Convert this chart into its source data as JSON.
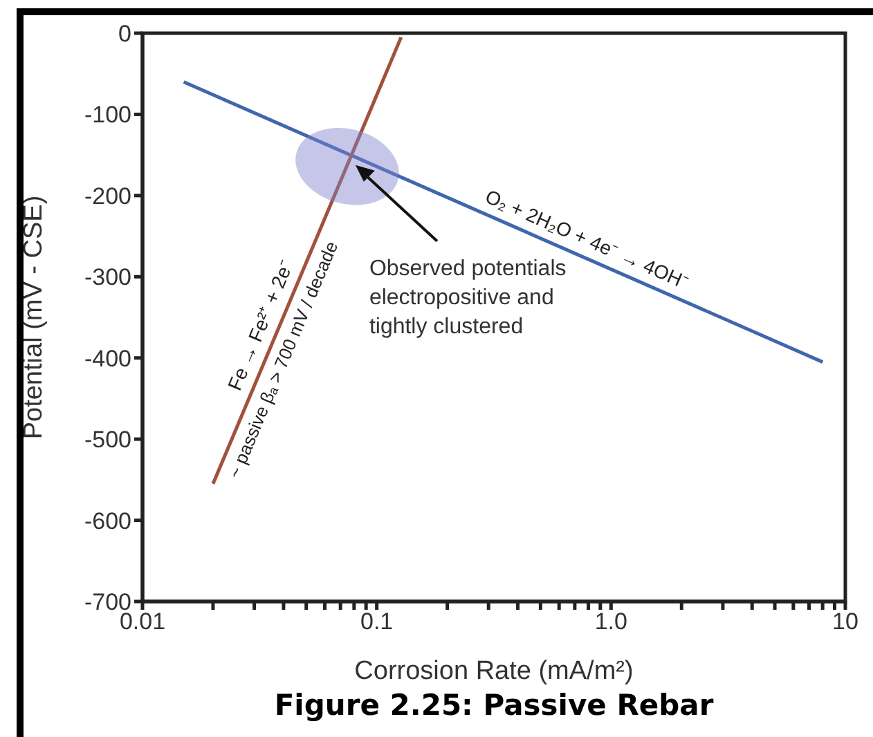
{
  "chart_data": {
    "type": "line",
    "title": "Figure 2.25: Passive Rebar",
    "xlabel": "Corrosion Rate (mA/m²)",
    "ylabel": "Potential (mV - CSE)",
    "log": "x",
    "marker": "none",
    "xlim": [
      0.01,
      10
    ],
    "xticks": [
      {
        "value": 0.01,
        "label": "0.01"
      },
      {
        "value": 0.02,
        "label": null
      },
      {
        "value": 0.03,
        "label": null
      },
      {
        "value": 0.04,
        "label": null
      },
      {
        "value": 0.05,
        "label": null
      },
      {
        "value": 0.06,
        "label": null
      },
      {
        "value": 0.07,
        "label": null
      },
      {
        "value": 0.08,
        "label": null
      },
      {
        "value": 0.09,
        "label": null
      },
      {
        "value": 0.1,
        "label": "0.1"
      },
      {
        "value": 0.2,
        "label": null
      },
      {
        "value": 0.3,
        "label": null
      },
      {
        "value": 0.4,
        "label": null
      },
      {
        "value": 0.5,
        "label": null
      },
      {
        "value": 0.6,
        "label": null
      },
      {
        "value": 0.7,
        "label": null
      },
      {
        "value": 0.8,
        "label": null
      },
      {
        "value": 0.9,
        "label": null
      },
      {
        "value": 1,
        "label": "1.0"
      },
      {
        "value": 2,
        "label": null
      },
      {
        "value": 3,
        "label": null
      },
      {
        "value": 4,
        "label": null
      },
      {
        "value": 5,
        "label": null
      },
      {
        "value": 6,
        "label": null
      },
      {
        "value": 7,
        "label": null
      },
      {
        "value": 8,
        "label": null
      },
      {
        "value": 9,
        "label": null
      },
      {
        "value": 10,
        "label": "10"
      }
    ],
    "ylim": [
      -700,
      0
    ],
    "yticks": [
      0,
      -100,
      -200,
      -300,
      -400,
      -500,
      -600,
      -700
    ],
    "series": [
      {
        "name": "O₂ + 2H₂O + 4e⁻ → 4OH⁻",
        "color": "#3f67ad",
        "x": [
          0.015,
          8
        ],
        "values": [
          -60,
          -405
        ]
      },
      {
        "name": "Fe → Fe²⁺ + 2e⁻",
        "color": "#a0523d",
        "x": [
          0.02,
          0.127
        ],
        "values": [
          -555,
          -5
        ]
      }
    ],
    "annotations": [
      "Observed potentials electropositive and tightly clustered",
      {
        "text": "~ passive βₐ > 700 mV / decade",
        "x": 0.034,
        "y": -394
      }
    ]
  }
}
